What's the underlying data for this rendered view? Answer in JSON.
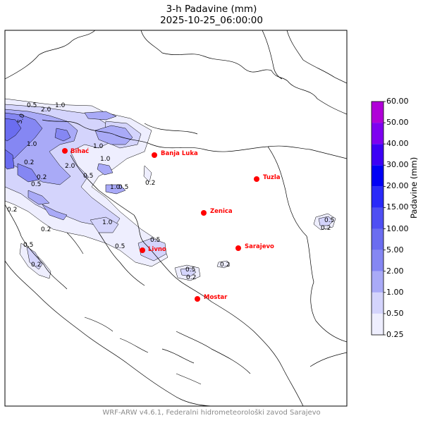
{
  "title_line1": "3-h Padavine (mm)",
  "title_line2": "2025-10-25_06:00:00",
  "footer": "WRF-ARW v4.6.1, Federalni hidrometeorološki zavod Sarajevo",
  "colorbar": {
    "title": "Padavine (mm)",
    "levels": [
      "0.25",
      "0.50",
      "1.00",
      "2.00",
      "5.00",
      "10.00",
      "15.00",
      "20.00",
      "30.00",
      "40.00",
      "50.00",
      "60.00"
    ],
    "colors": [
      "#eeeefe",
      "#d4d4fc",
      "#a9aaf7",
      "#8587f3",
      "#6b6df0",
      "#4f4ff3",
      "#2a2af9",
      "#0000f5",
      "#3c00f5",
      "#7e00f0",
      "#b000d8"
    ]
  },
  "cities": [
    {
      "name": "Bihać"
    },
    {
      "name": "Banja Luka"
    },
    {
      "name": "Tuzla"
    },
    {
      "name": "Zenica"
    },
    {
      "name": "Sarajevo"
    },
    {
      "name": "Livno"
    },
    {
      "name": "Mostar"
    }
  ],
  "contour_labels": [
    "0.5",
    "2.0",
    "1.0",
    "5.0",
    "1.0",
    "1.0",
    "0.2",
    "2.0",
    "1.0",
    "0.2",
    "0.5",
    "0.5",
    "1.0",
    "0.5",
    "0.2",
    "1.0",
    "0.5",
    "0.2",
    "0.5",
    "0.2",
    "0.5",
    "0.5",
    "0.2",
    "0.2",
    "0.5",
    "0.2",
    "0.2"
  ],
  "city_color": "#ff0000"
}
